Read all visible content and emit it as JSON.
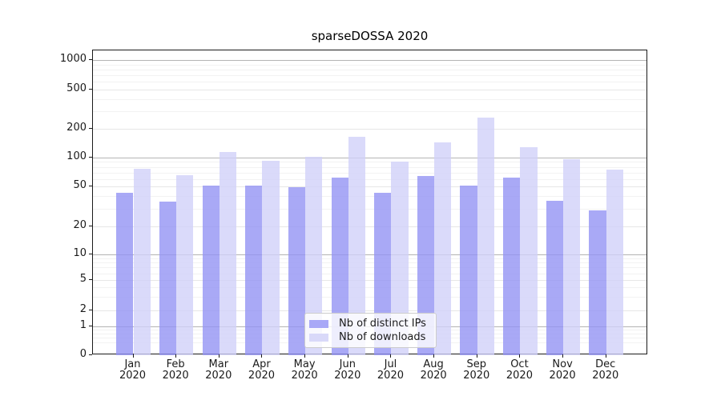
{
  "title": "sparseDOSSA 2020",
  "chart_data": {
    "type": "bar",
    "title": "sparseDOSSA 2020",
    "categories": [
      "Jan 2020",
      "Feb 2020",
      "Mar 2020",
      "Apr 2020",
      "May 2020",
      "Jun 2020",
      "Jul 2020",
      "Aug 2020",
      "Sep 2020",
      "Oct 2020",
      "Nov 2020",
      "Dec 2020"
    ],
    "series": [
      {
        "name": "Nb of distinct IPs",
        "color": "#a8a8f7",
        "fill": "rgba(147,147,244,0.8)",
        "values": [
          43,
          35,
          51,
          51,
          49,
          62,
          43,
          64,
          51,
          62,
          36,
          29
        ]
      },
      {
        "name": "Nb of downloads",
        "color": "#d9d9f9",
        "fill": "rgba(209,209,249,0.8)",
        "values": [
          76,
          65,
          114,
          92,
          101,
          165,
          90,
          143,
          260,
          128,
          97,
          75
        ]
      }
    ],
    "xlabel": "",
    "ylabel": "",
    "yscale": "symlog",
    "yticks": [
      0,
      1,
      2,
      5,
      10,
      20,
      50,
      100,
      200,
      500,
      1000
    ],
    "ylim": [
      0,
      1250
    ],
    "grid": true,
    "grid_which": "both",
    "legend_position": "lower center"
  },
  "legend": {
    "items": [
      {
        "label": "Nb of distinct IPs"
      },
      {
        "label": "Nb of downloads"
      }
    ]
  },
  "colors": {
    "grid_major_dark": "#b4b4b4",
    "grid_major_light": "#e7e7e7",
    "grid_minor": "#f2f2f2",
    "axis": "#1a1a1a",
    "text": "#1a1a1a"
  }
}
